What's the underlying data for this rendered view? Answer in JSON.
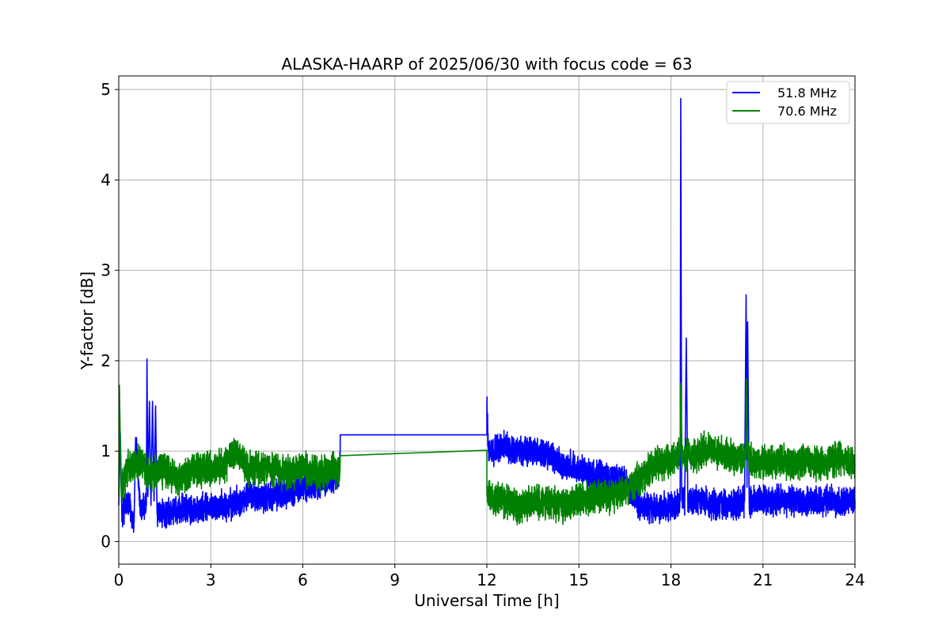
{
  "chart_data": {
    "type": "line",
    "title": "ALASKA-HAARP of 2025/06/30 with focus code = 63",
    "xlabel": "Universal Time [h]",
    "ylabel": "Y-factor [dB]",
    "xlim": [
      0,
      24
    ],
    "ylim": [
      -0.25,
      5.15
    ],
    "xticks": [
      0,
      3,
      6,
      9,
      12,
      15,
      18,
      21,
      24
    ],
    "yticks": [
      0,
      1,
      2,
      3,
      4,
      5
    ],
    "grid": true,
    "legend_position": "top-right",
    "series": [
      {
        "name": "51.8 MHz",
        "color": "#0000ff",
        "points": [
          [
            0.0,
            0.4
          ],
          [
            0.05,
            1.2
          ],
          [
            0.1,
            0.3
          ],
          [
            0.3,
            0.45
          ],
          [
            0.5,
            0.2
          ],
          [
            0.55,
            1.15
          ],
          [
            0.7,
            0.35
          ],
          [
            0.9,
            0.4
          ],
          [
            0.92,
            2.02
          ],
          [
            0.95,
            0.5
          ],
          [
            1.0,
            1.55
          ],
          [
            1.05,
            0.4
          ],
          [
            1.1,
            1.55
          ],
          [
            1.15,
            0.45
          ],
          [
            1.2,
            1.5
          ],
          [
            1.25,
            0.3
          ],
          [
            1.5,
            0.3
          ],
          [
            1.9,
            0.35
          ],
          [
            2.5,
            0.35
          ],
          [
            3.0,
            0.38
          ],
          [
            3.6,
            0.4
          ],
          [
            4.2,
            0.5
          ],
          [
            4.8,
            0.5
          ],
          [
            5.5,
            0.55
          ],
          [
            6.0,
            0.6
          ],
          [
            6.6,
            0.65
          ],
          [
            7.0,
            0.7
          ],
          [
            7.2,
            0.75
          ],
          [
            7.22,
            1.18
          ],
          [
            12.0,
            1.18
          ],
          [
            12.0,
            1.47
          ],
          [
            12.05,
            1.0
          ],
          [
            12.5,
            1.05
          ],
          [
            13.0,
            1.0
          ],
          [
            13.5,
            1.0
          ],
          [
            14.0,
            0.95
          ],
          [
            14.5,
            0.85
          ],
          [
            15.0,
            0.8
          ],
          [
            15.5,
            0.75
          ],
          [
            16.0,
            0.7
          ],
          [
            16.5,
            0.65
          ],
          [
            17.0,
            0.4
          ],
          [
            17.5,
            0.35
          ],
          [
            18.0,
            0.4
          ],
          [
            18.3,
            0.45
          ],
          [
            18.32,
            4.9
          ],
          [
            18.35,
            0.5
          ],
          [
            18.45,
            0.45
          ],
          [
            18.5,
            2.25
          ],
          [
            18.55,
            0.45
          ],
          [
            19.0,
            0.45
          ],
          [
            19.5,
            0.4
          ],
          [
            20.0,
            0.4
          ],
          [
            20.4,
            0.45
          ],
          [
            20.45,
            2.73
          ],
          [
            20.48,
            0.6
          ],
          [
            20.5,
            2.43
          ],
          [
            20.55,
            0.45
          ],
          [
            21.0,
            0.45
          ],
          [
            22.0,
            0.45
          ],
          [
            23.0,
            0.45
          ],
          [
            24.0,
            0.45
          ]
        ]
      },
      {
        "name": "70.6 MHz",
        "color": "#008000",
        "points": [
          [
            0.0,
            0.5
          ],
          [
            0.02,
            1.73
          ],
          [
            0.08,
            0.55
          ],
          [
            0.3,
            0.8
          ],
          [
            0.7,
            0.9
          ],
          [
            1.0,
            0.75
          ],
          [
            1.5,
            0.8
          ],
          [
            2.0,
            0.7
          ],
          [
            2.5,
            0.8
          ],
          [
            3.0,
            0.8
          ],
          [
            3.5,
            0.85
          ],
          [
            3.8,
            1.0
          ],
          [
            4.2,
            0.8
          ],
          [
            4.8,
            0.8
          ],
          [
            5.5,
            0.75
          ],
          [
            6.0,
            0.8
          ],
          [
            6.5,
            0.75
          ],
          [
            7.0,
            0.8
          ],
          [
            7.2,
            0.75
          ],
          [
            7.22,
            0.95
          ],
          [
            12.0,
            1.01
          ],
          [
            12.0,
            0.5
          ],
          [
            12.5,
            0.45
          ],
          [
            13.0,
            0.4
          ],
          [
            13.2,
            0.4
          ],
          [
            13.5,
            0.45
          ],
          [
            14.0,
            0.45
          ],
          [
            14.5,
            0.4
          ],
          [
            15.0,
            0.45
          ],
          [
            15.5,
            0.5
          ],
          [
            16.0,
            0.5
          ],
          [
            16.5,
            0.55
          ],
          [
            17.0,
            0.7
          ],
          [
            17.5,
            0.85
          ],
          [
            18.0,
            0.9
          ],
          [
            18.3,
            1.0
          ],
          [
            18.32,
            1.75
          ],
          [
            18.36,
            0.95
          ],
          [
            18.8,
            0.95
          ],
          [
            19.3,
            1.05
          ],
          [
            19.8,
            0.95
          ],
          [
            20.2,
            0.9
          ],
          [
            20.45,
            1.0
          ],
          [
            20.46,
            1.8
          ],
          [
            20.5,
            0.9
          ],
          [
            21.0,
            0.85
          ],
          [
            21.5,
            0.9
          ],
          [
            22.0,
            0.85
          ],
          [
            22.5,
            0.9
          ],
          [
            23.0,
            0.85
          ],
          [
            23.5,
            0.95
          ],
          [
            24.0,
            0.85
          ]
        ],
        "noise": 0.16
      }
    ],
    "noise_levels": {
      "51.8 MHz": 0.14,
      "70.6 MHz": 0.16
    }
  },
  "legend": {
    "items": [
      {
        "label": "51.8 MHz",
        "color": "#0000ff"
      },
      {
        "label": "70.6 MHz",
        "color": "#008000"
      }
    ]
  }
}
